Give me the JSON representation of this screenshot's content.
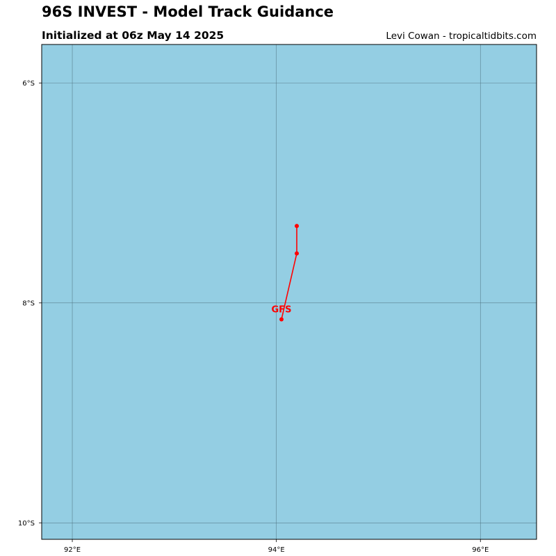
{
  "header": {
    "title": "96S INVEST - Model Track Guidance",
    "subtitle": "Initialized at 06z May 14 2025",
    "credit": "Levi Cowan - tropicaltidbits.com"
  },
  "map": {
    "ocean_color": "#94CEE3",
    "gridline_color": "#4a6b78",
    "lon_range": [
      91.7,
      96.55
    ],
    "lat_range": [
      -5.65,
      -10.15
    ],
    "x_ticks": [
      {
        "value": 92,
        "label": "92°E"
      },
      {
        "value": 94,
        "label": "94°E"
      },
      {
        "value": 96,
        "label": "96°E"
      }
    ],
    "y_ticks": [
      {
        "value": -6,
        "label": "6°S"
      },
      {
        "value": -8,
        "label": "8°S"
      },
      {
        "value": -10,
        "label": "10°S"
      }
    ]
  },
  "chart_data": {
    "type": "line",
    "title": "96S INVEST - Model Track Guidance",
    "subtitle": "Initialized at 06z May 14 2025",
    "xlabel": "",
    "ylabel": "",
    "xlim": [
      91.7,
      96.55
    ],
    "ylim": [
      -10.15,
      -5.65
    ],
    "grid": true,
    "series": [
      {
        "name": "GFS",
        "color": "#FF0000",
        "points": [
          {
            "lon": 94.05,
            "lat": -8.15
          },
          {
            "lon": 94.2,
            "lat": -7.55
          },
          {
            "lon": 94.2,
            "lat": -7.3
          }
        ]
      }
    ]
  }
}
